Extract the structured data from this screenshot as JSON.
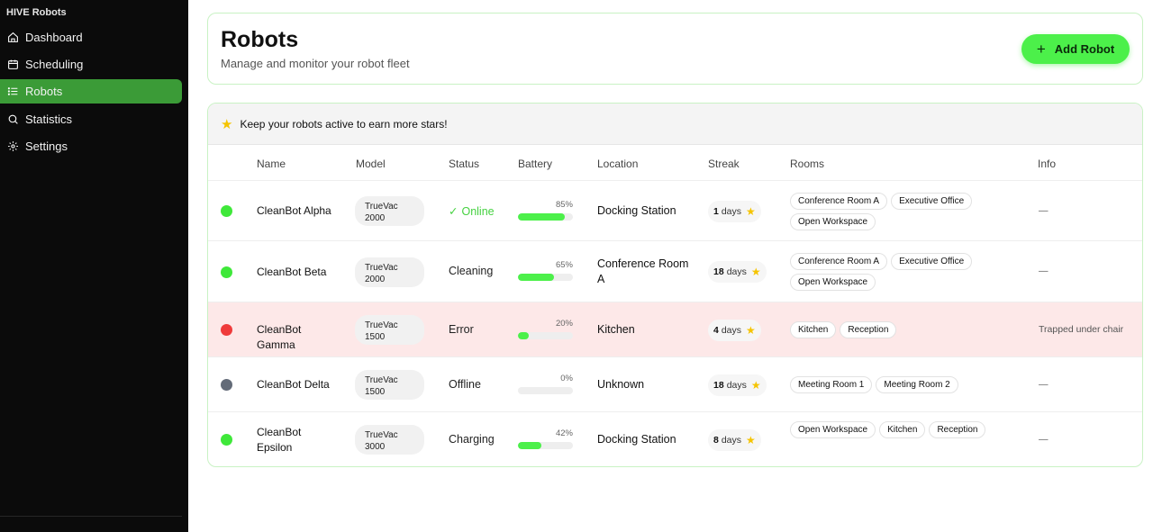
{
  "app": {
    "brand": "HIVE Robots"
  },
  "sidebar": {
    "items": [
      {
        "label": "Dashboard",
        "icon": "home-icon"
      },
      {
        "label": "Scheduling",
        "icon": "calendar-icon"
      },
      {
        "label": "Robots",
        "icon": "list-icon",
        "active": true
      },
      {
        "label": "Statistics",
        "icon": "search-icon"
      },
      {
        "label": "Settings",
        "icon": "gear-icon"
      }
    ]
  },
  "header": {
    "title": "Robots",
    "subtitle": "Manage and monitor your robot fleet",
    "add_button": "Add Robot",
    "add_icon": "+"
  },
  "tip": {
    "text": "Keep your robots active to earn more stars!"
  },
  "table": {
    "columns": [
      "Name",
      "Model",
      "Status",
      "Battery",
      "Location",
      "Streak",
      "Rooms",
      "Info"
    ],
    "rows": [
      {
        "name": "CleanBot Alpha",
        "status_color": "#3fe83a",
        "model_line1": "TrueVac",
        "model_line2": "2000",
        "status": "Online",
        "status_icon": "✓",
        "battery_pct": "85%",
        "battery": 85,
        "location": "Docking Station",
        "streak_num": "1",
        "streak_unit": "days",
        "rooms": [
          "Conference Room A",
          "Executive Office",
          "Open Workspace"
        ],
        "info": "—"
      },
      {
        "name": "CleanBot Beta",
        "status_color": "#3fe83a",
        "model_line1": "TrueVac",
        "model_line2": "2000",
        "status": "Cleaning",
        "status_icon": "",
        "battery_pct": "65%",
        "battery": 65,
        "location": "Conference Room A",
        "streak_num": "18",
        "streak_unit": "days",
        "rooms": [
          "Conference Room A",
          "Executive Office",
          "Open Workspace"
        ],
        "info": "—"
      },
      {
        "name": "CleanBot Gamma",
        "status_color": "#ef3b3b",
        "model_line1": "TrueVac",
        "model_line2": "1500",
        "status": "Error",
        "status_icon": "",
        "battery_pct": "20%",
        "battery": 20,
        "location": "Kitchen",
        "streak_num": "4",
        "streak_unit": "days",
        "rooms": [
          "Kitchen",
          "Reception"
        ],
        "info": "Trapped under chair"
      },
      {
        "name": "CleanBot Delta",
        "status_color": "#636b78",
        "model_line1": "TrueVac",
        "model_line2": "1500",
        "status": "Offline",
        "status_icon": "",
        "battery_pct": "0%",
        "battery": 0,
        "location": "Unknown",
        "streak_num": "18",
        "streak_unit": "days",
        "rooms": [
          "Meeting Room 1",
          "Meeting Room 2"
        ],
        "info": "—"
      },
      {
        "name": "CleanBot Epsilon",
        "status_color": "#3fe83a",
        "model_line1": "TrueVac",
        "model_line2": "3000",
        "status": "Charging",
        "status_icon": "",
        "battery_pct": "42%",
        "battery": 42,
        "location": "Docking Station",
        "streak_num": "8",
        "streak_unit": "days",
        "rooms": [
          "Open Workspace",
          "Kitchen",
          "Reception"
        ],
        "info": "—"
      }
    ]
  }
}
